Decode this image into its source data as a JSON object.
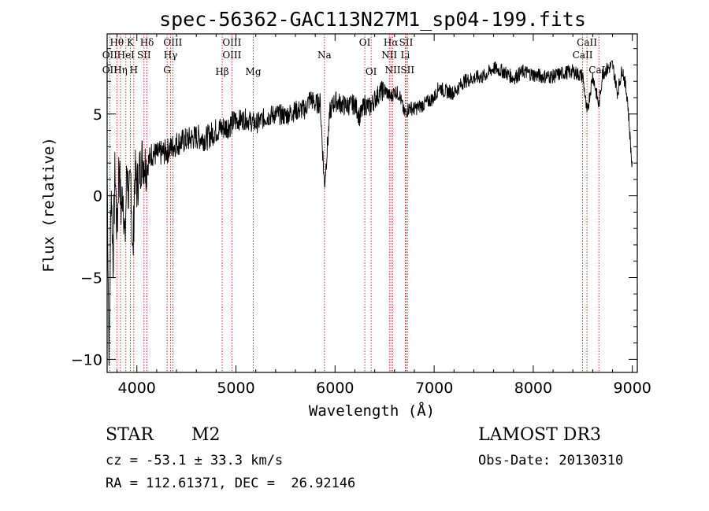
{
  "chart_data": {
    "type": "line",
    "title": "spec-56362-GAC113N27M1_sp04-199.fits",
    "xlabel": "Wavelength (Å)",
    "ylabel": "Flux (relative)",
    "xlim": [
      3700,
      9050
    ],
    "ylim": [
      -10.8,
      9.9
    ],
    "x_ticks": [
      4000,
      5000,
      6000,
      7000,
      8000,
      9000
    ],
    "y_ticks": [
      -10,
      -5,
      0,
      5
    ],
    "y_tick_labels": [
      "−10",
      "−5",
      "0",
      "5"
    ],
    "series": [
      {
        "name": "spectrum",
        "x": [
          3700,
          3720,
          3740,
          3760,
          3780,
          3800,
          3820,
          3840,
          3860,
          3880,
          3900,
          3920,
          3940,
          3960,
          3980,
          4000,
          4050,
          4100,
          4150,
          4200,
          4300,
          4400,
          4500,
          4600,
          4700,
          4800,
          4900,
          5000,
          5100,
          5200,
          5300,
          5400,
          5500,
          5600,
          5700,
          5750,
          5800,
          5850,
          5893,
          5950,
          6000,
          6100,
          6200,
          6250,
          6300,
          6350,
          6400,
          6450,
          6500,
          6563,
          6600,
          6650,
          6700,
          6750,
          6800,
          6900,
          7000,
          7050,
          7100,
          7200,
          7300,
          7400,
          7500,
          7600,
          7700,
          7800,
          7900,
          8000,
          8100,
          8200,
          8300,
          8400,
          8500,
          8542,
          8600,
          8662,
          8700,
          8800,
          8850,
          8900,
          8950,
          9000
        ],
        "y": [
          1.5,
          -10.2,
          0.8,
          -4.0,
          1.8,
          -2.5,
          2.2,
          -1.0,
          0.5,
          -3.0,
          2.0,
          -0.5,
          1.2,
          -4.0,
          1.5,
          0.5,
          2.3,
          1.8,
          2.6,
          2.5,
          2.7,
          3.2,
          3.4,
          3.6,
          3.5,
          4.0,
          4.2,
          4.6,
          4.7,
          4.4,
          4.8,
          5.0,
          4.9,
          5.2,
          5.3,
          6.0,
          5.6,
          5.7,
          0.6,
          5.2,
          5.8,
          5.5,
          5.6,
          4.8,
          5.6,
          5.4,
          5.9,
          6.3,
          6.5,
          6.0,
          6.4,
          6.2,
          5.0,
          5.4,
          5.3,
          5.6,
          6.0,
          6.7,
          6.4,
          6.3,
          7.0,
          7.2,
          7.3,
          7.8,
          7.6,
          7.2,
          7.6,
          7.4,
          7.3,
          7.3,
          7.5,
          7.6,
          7.3,
          5.0,
          7.4,
          5.5,
          7.5,
          8.0,
          6.3,
          7.8,
          6.0,
          1.5
        ]
      }
    ],
    "emission_lines": [
      {
        "label": "Hθ",
        "x": 3798,
        "row": 1
      },
      {
        "label": "OII",
        "x": 3727,
        "row": 2
      },
      {
        "label": "OII",
        "x": 3727,
        "row": 3
      },
      {
        "label": "Hη",
        "x": 3835,
        "row": 3
      },
      {
        "label": "K",
        "x": 3934,
        "row": 1
      },
      {
        "label": "HeI",
        "x": 3889,
        "row": 2
      },
      {
        "label": "H",
        "x": 3969,
        "row": 3
      },
      {
        "label": "SII",
        "x": 4072,
        "row": 2
      },
      {
        "label": "Hδ",
        "x": 4102,
        "row": 1
      },
      {
        "label": "OIII",
        "x": 4363,
        "row": 1
      },
      {
        "label": "Hγ",
        "x": 4340,
        "row": 2
      },
      {
        "label": "G",
        "x": 4305,
        "row": 3
      },
      {
        "label": "OIII",
        "x": 4959,
        "row": 1
      },
      {
        "label": "OIII",
        "x": 4959,
        "row": 2
      },
      {
        "label": "Hβ",
        "x": 4861,
        "row": 4
      },
      {
        "label": "Mg",
        "x": 5175,
        "row": 4
      },
      {
        "label": "Na",
        "x": 5893,
        "row": 2
      },
      {
        "label": "OI",
        "x": 6300,
        "row": 1
      },
      {
        "label": "OI",
        "x": 6364,
        "row": 4
      },
      {
        "label": "Hα",
        "x": 6563,
        "row": 1
      },
      {
        "label": "SII",
        "x": 6717,
        "row": 1
      },
      {
        "label": "NII",
        "x": 6548,
        "row": 2
      },
      {
        "label": "Li",
        "x": 6708,
        "row": 2
      },
      {
        "label": "NII",
        "x": 6583,
        "row": 3
      },
      {
        "label": "SII",
        "x": 6731,
        "row": 3
      },
      {
        "label": "CaII",
        "x": 8542,
        "row": 1
      },
      {
        "label": "CaII",
        "x": 8498,
        "row": 2
      },
      {
        "label": "CaII",
        "x": 8662,
        "row": 3
      }
    ]
  },
  "info": {
    "class_label": "STAR",
    "subclass_label": "M2",
    "survey": "LAMOST DR3",
    "cz": "cz = -53.1 ± 33.3 km/s",
    "obs_date": "Obs-Date: 20130310",
    "radec": "RA = 112.61371, DEC =  26.92146"
  },
  "colors": {
    "line_marker": "#c00000",
    "spectrum": "#000000"
  }
}
